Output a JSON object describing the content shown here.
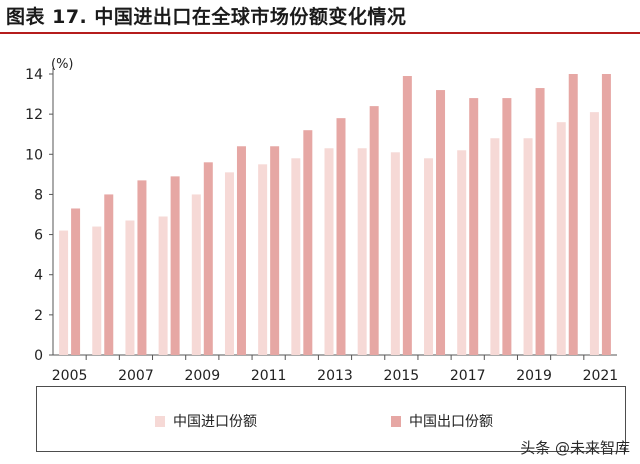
{
  "title": "图表 17. 中国进出口在全球市场份额变化情况",
  "watermark": "头条 @未来智库",
  "colors": {
    "import": "#f6d9d6",
    "export": "#e6a7a4",
    "title_rule": "#b51c1c"
  },
  "chart_data": {
    "type": "bar",
    "title": "图表 17. 中国进出口在全球市场份额变化情况",
    "ylabel": "(%)",
    "ylim": [
      0,
      14
    ],
    "yticks": [
      0,
      2,
      4,
      6,
      8,
      10,
      12,
      14
    ],
    "categories": [
      "2005",
      "2006",
      "2007",
      "2008",
      "2009",
      "2010",
      "2011",
      "2012",
      "2013",
      "2014",
      "2015",
      "2016",
      "2017",
      "2018",
      "2019",
      "2020",
      "2021"
    ],
    "xtick_labels": [
      "2005",
      "2007",
      "2009",
      "2011",
      "2013",
      "2015",
      "2017",
      "2019",
      "2021"
    ],
    "series": [
      {
        "name": "中国进口份额",
        "values": [
          6.2,
          6.4,
          6.7,
          6.9,
          8.0,
          9.1,
          9.5,
          9.8,
          10.3,
          10.3,
          10.1,
          9.8,
          10.2,
          10.8,
          10.8,
          11.6,
          12.1
        ]
      },
      {
        "name": "中国出口份额",
        "values": [
          7.3,
          8.0,
          8.7,
          8.9,
          9.6,
          10.4,
          10.4,
          11.2,
          11.8,
          12.4,
          13.9,
          13.2,
          12.8,
          12.8,
          13.3,
          14.0,
          14.0
        ]
      }
    ],
    "legend_position": "bottom",
    "grid": false
  }
}
